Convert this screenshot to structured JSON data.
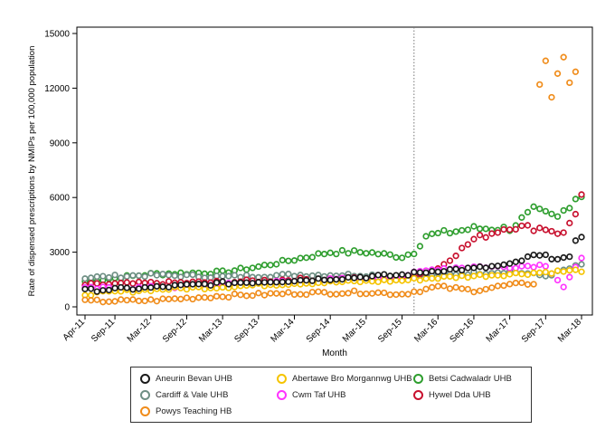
{
  "chart_data": {
    "type": "scatter",
    "title": "",
    "xlabel": "Month",
    "ylabel": "Rate of dispensed prescriptions by NMIPs per 100,000 population",
    "ylim": [
      0,
      15000
    ],
    "yticks": [
      "0",
      "3000",
      "6000",
      "9000",
      "12000",
      "15000"
    ],
    "xlim_months": [
      0,
      83
    ],
    "xticks": [
      {
        "label": "Apr-11",
        "month": 0
      },
      {
        "label": "Sep-11",
        "month": 5
      },
      {
        "label": "Mar-12",
        "month": 11
      },
      {
        "label": "Sep-12",
        "month": 17
      },
      {
        "label": "Mar-13",
        "month": 23
      },
      {
        "label": "Sep-13",
        "month": 29
      },
      {
        "label": "Mar-14",
        "month": 35
      },
      {
        "label": "Sep-14",
        "month": 41
      },
      {
        "label": "Mar-15",
        "month": 47
      },
      {
        "label": "Sep-15",
        "month": 53
      },
      {
        "label": "Mar-16",
        "month": 59
      },
      {
        "label": "Sep-16",
        "month": 65
      },
      {
        "label": "Mar-17",
        "month": 71
      },
      {
        "label": "Sep-17",
        "month": 77
      },
      {
        "label": "Mar-18",
        "month": 83
      }
    ],
    "reference_line_month": 55,
    "grid": false,
    "legend_position": "bottom",
    "series": [
      {
        "name": "Aneurin Bevan UHB",
        "color": "#1a1a1a",
        "anchors": [
          [
            0,
            900
          ],
          [
            11,
            1050
          ],
          [
            23,
            1300
          ],
          [
            35,
            1450
          ],
          [
            47,
            1650
          ],
          [
            53,
            1750
          ],
          [
            59,
            2000
          ],
          [
            65,
            2100
          ],
          [
            71,
            2300
          ],
          [
            75,
            2800
          ],
          [
            81,
            2650
          ],
          [
            82,
            3500
          ],
          [
            83,
            3900
          ]
        ]
      },
      {
        "name": "Abertawe Bro Morgannwg UHB",
        "color": "#f5c400",
        "anchors": [
          [
            0,
            700
          ],
          [
            11,
            950
          ],
          [
            23,
            1100
          ],
          [
            35,
            1300
          ],
          [
            47,
            1400
          ],
          [
            53,
            1450
          ],
          [
            59,
            1600
          ],
          [
            65,
            1700
          ],
          [
            71,
            1800
          ],
          [
            77,
            1900
          ],
          [
            83,
            2000
          ]
        ]
      },
      {
        "name": "Betsi Cadwaladr UHB",
        "color": "#2e9e2e",
        "anchors": [
          [
            0,
            1400
          ],
          [
            11,
            1800
          ],
          [
            23,
            1900
          ],
          [
            29,
            2200
          ],
          [
            35,
            2600
          ],
          [
            41,
            3000
          ],
          [
            47,
            3000
          ],
          [
            53,
            2750
          ],
          [
            55,
            3000
          ],
          [
            57,
            3900
          ],
          [
            59,
            4000
          ],
          [
            65,
            4300
          ],
          [
            71,
            4300
          ],
          [
            75,
            5300
          ],
          [
            79,
            4900
          ],
          [
            82,
            6000
          ],
          [
            83,
            6100
          ]
        ]
      },
      {
        "name": "Cardiff & Vale UHB",
        "color": "#6e8f84",
        "anchors": [
          [
            0,
            1600
          ],
          [
            11,
            1750
          ],
          [
            23,
            1650
          ],
          [
            35,
            1750
          ],
          [
            47,
            1750
          ],
          [
            53,
            1700
          ],
          [
            59,
            1750
          ],
          [
            65,
            1850
          ],
          [
            71,
            1950
          ],
          [
            77,
            1700
          ],
          [
            83,
            2300
          ]
        ]
      },
      {
        "name": "Cwm Taf UHB",
        "color": "#ff33ff",
        "anchors": [
          [
            0,
            1000
          ],
          [
            11,
            1050
          ],
          [
            23,
            1200
          ],
          [
            35,
            1400
          ],
          [
            47,
            1550
          ],
          [
            53,
            1700
          ],
          [
            59,
            2100
          ],
          [
            65,
            2200
          ],
          [
            71,
            2200
          ],
          [
            77,
            2300
          ],
          [
            80,
            1100
          ],
          [
            83,
            2600
          ]
        ]
      },
      {
        "name": "Hywel Dda UHB",
        "color": "#c8102e",
        "anchors": [
          [
            0,
            1200
          ],
          [
            11,
            1300
          ],
          [
            23,
            1350
          ],
          [
            35,
            1500
          ],
          [
            47,
            1550
          ],
          [
            53,
            1500
          ],
          [
            59,
            2100
          ],
          [
            65,
            3700
          ],
          [
            71,
            4400
          ],
          [
            77,
            4300
          ],
          [
            80,
            4000
          ],
          [
            82,
            5200
          ],
          [
            83,
            6100
          ]
        ]
      },
      {
        "name": "Powys Teaching HB",
        "color": "#f08c1a",
        "anchors": [
          [
            0,
            300
          ],
          [
            11,
            350
          ],
          [
            23,
            600
          ],
          [
            35,
            750
          ],
          [
            47,
            800
          ],
          [
            53,
            700
          ],
          [
            59,
            1100
          ],
          [
            65,
            900
          ],
          [
            71,
            1200
          ],
          [
            75,
            1300
          ],
          [
            76,
            12200
          ],
          [
            77,
            13500
          ],
          [
            78,
            11500
          ],
          [
            79,
            12800
          ],
          [
            80,
            13700
          ],
          [
            81,
            12300
          ],
          [
            82,
            12900
          ]
        ]
      }
    ]
  }
}
